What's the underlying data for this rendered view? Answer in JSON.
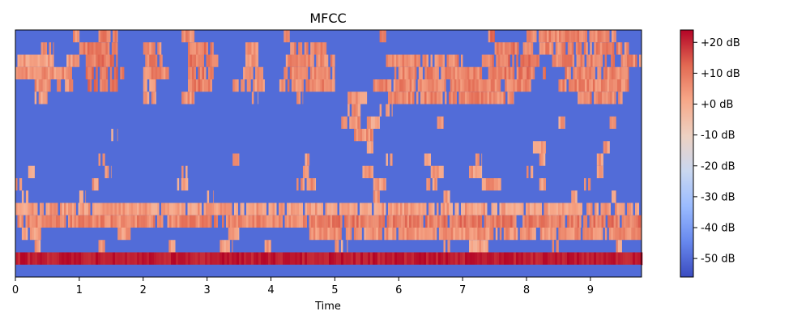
{
  "chart_data": {
    "type": "heatmap",
    "title": "MFCC",
    "xlabel": "Time",
    "ylabel": "",
    "xlim": [
      0,
      9.8
    ],
    "x_ticks": [
      0,
      1,
      2,
      3,
      4,
      5,
      6,
      7,
      8,
      9
    ],
    "x_tick_labels": [
      "0",
      "1",
      "2",
      "3",
      "4",
      "5",
      "6",
      "7",
      "8",
      "9"
    ],
    "y_ticks_shown": false,
    "n_coefficients": 20,
    "colorbar": {
      "range": [
        -56,
        24
      ],
      "ticks": [
        20,
        10,
        0,
        -10,
        -20,
        -30,
        -40,
        -50
      ],
      "tick_labels": [
        "+20 dB",
        "+10 dB",
        "+0 dB",
        "-10 dB",
        "-20 dB",
        "-30 dB",
        "-40 dB",
        "-50 dB"
      ],
      "colormap": [
        "#3b4cc0",
        "#6788ee",
        "#9abbff",
        "#c9d7f0",
        "#edd1c2",
        "#f7a889",
        "#e26952",
        "#b40426"
      ]
    },
    "rows_top_to_bottom": [
      {
        "base": -50,
        "segments": [
          [
            0.9,
            1.0,
            10
          ],
          [
            1.3,
            1.6,
            12
          ],
          [
            2.6,
            2.8,
            10
          ],
          [
            4.2,
            4.3,
            12
          ],
          [
            5.7,
            5.8,
            10
          ],
          [
            7.4,
            7.5,
            12
          ],
          [
            8.0,
            9.4,
            10
          ]
        ]
      },
      {
        "base": -50,
        "segments": [
          [
            0.4,
            0.6,
            8
          ],
          [
            1.0,
            1.6,
            12
          ],
          [
            2.0,
            2.3,
            10
          ],
          [
            2.7,
            3.1,
            12
          ],
          [
            3.6,
            3.8,
            8
          ],
          [
            4.3,
            4.9,
            10
          ],
          [
            7.5,
            8.1,
            12
          ],
          [
            8.2,
            9.6,
            10
          ]
        ]
      },
      {
        "base": -50,
        "segments": [
          [
            0.0,
            0.6,
            6
          ],
          [
            0.8,
            1.0,
            6
          ],
          [
            1.1,
            1.6,
            12
          ],
          [
            2.0,
            2.3,
            10
          ],
          [
            2.7,
            3.2,
            12
          ],
          [
            3.6,
            3.8,
            8
          ],
          [
            4.2,
            5.0,
            10
          ],
          [
            5.8,
            7.0,
            10
          ],
          [
            7.3,
            8.2,
            12
          ],
          [
            8.4,
            9.8,
            10
          ]
        ]
      },
      {
        "base": -50,
        "segments": [
          [
            0.0,
            0.9,
            8
          ],
          [
            1.1,
            1.7,
            12
          ],
          [
            2.0,
            2.4,
            10
          ],
          [
            2.7,
            3.1,
            12
          ],
          [
            3.5,
            3.9,
            10
          ],
          [
            4.2,
            5.0,
            10
          ],
          [
            5.9,
            7.3,
            10
          ],
          [
            7.4,
            8.3,
            12
          ],
          [
            8.6,
            9.6,
            10
          ]
        ]
      },
      {
        "base": -50,
        "segments": [
          [
            0.3,
            0.9,
            8
          ],
          [
            1.1,
            1.6,
            12
          ],
          [
            2.0,
            2.2,
            8
          ],
          [
            2.7,
            3.1,
            12
          ],
          [
            3.4,
            3.9,
            8
          ],
          [
            4.1,
            5.0,
            10
          ],
          [
            5.6,
            8.1,
            10
          ],
          [
            8.5,
            9.6,
            10
          ]
        ]
      },
      {
        "base": -50,
        "segments": [
          [
            0.3,
            0.5,
            6
          ],
          [
            2.0,
            2.2,
            6
          ],
          [
            2.6,
            2.8,
            8
          ],
          [
            3.7,
            3.8,
            6
          ],
          [
            4.4,
            4.5,
            6
          ],
          [
            5.2,
            5.5,
            8
          ],
          [
            5.8,
            7.8,
            10
          ],
          [
            8.8,
            9.5,
            10
          ]
        ]
      },
      {
        "base": -50,
        "segments": [
          [
            5.2,
            5.4,
            8
          ],
          [
            5.7,
            5.9,
            6
          ]
        ]
      },
      {
        "base": -50,
        "segments": [
          [
            5.1,
            5.4,
            8
          ],
          [
            5.5,
            5.7,
            6
          ],
          [
            6.6,
            6.7,
            6
          ],
          [
            8.5,
            8.6,
            6
          ],
          [
            9.3,
            9.4,
            6
          ]
        ]
      },
      {
        "base": -50,
        "segments": [
          [
            1.5,
            1.6,
            6
          ],
          [
            5.3,
            5.6,
            8
          ]
        ]
      },
      {
        "base": -50,
        "segments": [
          [
            5.5,
            5.6,
            6
          ],
          [
            8.1,
            8.3,
            6
          ],
          [
            9.2,
            9.3,
            6
          ]
        ]
      },
      {
        "base": -50,
        "segments": [
          [
            1.3,
            1.4,
            6
          ],
          [
            3.4,
            3.5,
            6
          ],
          [
            4.5,
            4.6,
            6
          ],
          [
            5.8,
            5.9,
            6
          ],
          [
            6.4,
            6.5,
            6
          ],
          [
            7.2,
            7.3,
            6
          ],
          [
            8.2,
            8.3,
            6
          ],
          [
            9.1,
            9.2,
            6
          ]
        ]
      },
      {
        "base": -50,
        "segments": [
          [
            0.2,
            0.3,
            6
          ],
          [
            1.4,
            1.5,
            6
          ],
          [
            2.6,
            2.7,
            6
          ],
          [
            4.5,
            4.6,
            6
          ],
          [
            5.4,
            5.6,
            6
          ],
          [
            6.5,
            6.7,
            6
          ],
          [
            7.1,
            7.3,
            6
          ],
          [
            8.0,
            8.1,
            6
          ],
          [
            9.1,
            9.2,
            6
          ]
        ]
      },
      {
        "base": -50,
        "segments": [
          [
            0.0,
            0.1,
            6
          ],
          [
            1.2,
            1.3,
            6
          ],
          [
            2.5,
            2.7,
            6
          ],
          [
            4.4,
            4.7,
            8
          ],
          [
            5.6,
            5.8,
            6
          ],
          [
            6.4,
            6.6,
            6
          ],
          [
            7.3,
            7.6,
            8
          ],
          [
            8.2,
            8.3,
            6
          ],
          [
            8.9,
            9.0,
            6
          ]
        ]
      },
      {
        "base": -50,
        "segments": [
          [
            0.1,
            0.2,
            6
          ],
          [
            1.0,
            1.1,
            6
          ],
          [
            3.0,
            3.1,
            6
          ],
          [
            5.6,
            5.7,
            6
          ],
          [
            6.7,
            6.8,
            6
          ],
          [
            8.7,
            8.8,
            6
          ],
          [
            9.3,
            9.4,
            6
          ]
        ]
      },
      {
        "base": -50,
        "segments": [
          [
            0.0,
            9.8,
            6
          ]
        ]
      },
      {
        "base": -50,
        "segments": [
          [
            0.0,
            4.8,
            10
          ],
          [
            4.8,
            9.8,
            12
          ]
        ]
      },
      {
        "base": -50,
        "segments": [
          [
            0.1,
            0.4,
            6
          ],
          [
            1.6,
            1.8,
            6
          ],
          [
            3.3,
            3.5,
            6
          ],
          [
            4.6,
            9.8,
            8
          ]
        ]
      },
      {
        "base": -50,
        "segments": [
          [
            0.3,
            0.4,
            6
          ],
          [
            1.3,
            1.4,
            6
          ],
          [
            2.4,
            2.5,
            6
          ],
          [
            3.2,
            3.4,
            6
          ],
          [
            3.9,
            4.0,
            6
          ],
          [
            5.0,
            5.2,
            6
          ],
          [
            6.7,
            6.8,
            6
          ],
          [
            7.1,
            7.4,
            6
          ],
          [
            8.4,
            8.5,
            6
          ],
          [
            9.4,
            9.5,
            6
          ]
        ]
      },
      {
        "base": 24,
        "segments": []
      },
      {
        "base": -50,
        "segments": []
      }
    ]
  }
}
